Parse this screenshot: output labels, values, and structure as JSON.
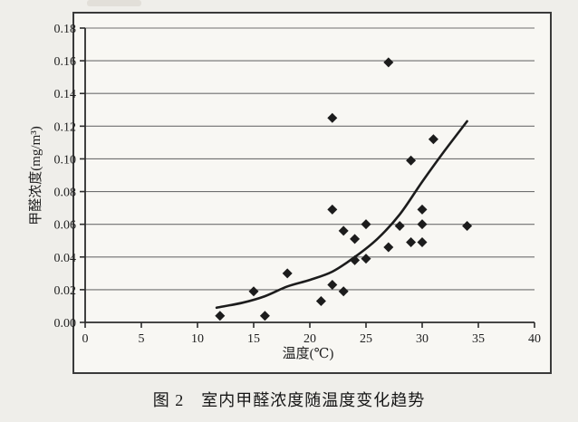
{
  "figure": {
    "caption": "图 2　室内甲醛浓度随温度变化趋势"
  },
  "chart_data": {
    "type": "scatter",
    "title": "",
    "xlabel": "温度(℃)",
    "ylabel": "甲醛浓度(mg/m³)",
    "xlim": [
      0,
      40
    ],
    "ylim": [
      0,
      0.18
    ],
    "xticks": [
      0,
      5,
      10,
      15,
      20,
      25,
      30,
      35,
      40
    ],
    "yticks": [
      0.0,
      0.02,
      0.04,
      0.06,
      0.08,
      0.1,
      0.12,
      0.14,
      0.16,
      0.18
    ],
    "grid": "horizontal",
    "legend": "none",
    "marker": "diamond",
    "marker_color": "#1c1c1c",
    "line_color": "#1c1c1c",
    "points": [
      [
        12,
        0.004
      ],
      [
        15,
        0.019
      ],
      [
        16,
        0.004
      ],
      [
        18,
        0.03
      ],
      [
        21,
        0.013
      ],
      [
        22,
        0.023
      ],
      [
        23,
        0.019
      ],
      [
        24,
        0.038
      ],
      [
        25,
        0.039
      ],
      [
        23,
        0.056
      ],
      [
        24,
        0.051
      ],
      [
        25,
        0.06
      ],
      [
        27,
        0.046
      ],
      [
        28,
        0.059
      ],
      [
        29,
        0.049
      ],
      [
        30,
        0.049
      ],
      [
        30,
        0.06
      ],
      [
        30,
        0.069
      ],
      [
        22,
        0.069
      ],
      [
        22,
        0.125
      ],
      [
        27,
        0.159
      ],
      [
        29,
        0.099
      ],
      [
        31,
        0.112
      ],
      [
        34,
        0.059
      ]
    ],
    "trend_curve": {
      "description": "exponential-like rising trend line",
      "samples": [
        [
          11.7,
          0.009
        ],
        [
          14,
          0.012
        ],
        [
          16,
          0.016
        ],
        [
          18,
          0.022
        ],
        [
          20,
          0.026
        ],
        [
          22,
          0.031
        ],
        [
          24,
          0.04
        ],
        [
          26,
          0.051
        ],
        [
          28,
          0.066
        ],
        [
          30,
          0.086
        ],
        [
          32,
          0.105
        ],
        [
          34,
          0.123
        ]
      ]
    }
  }
}
